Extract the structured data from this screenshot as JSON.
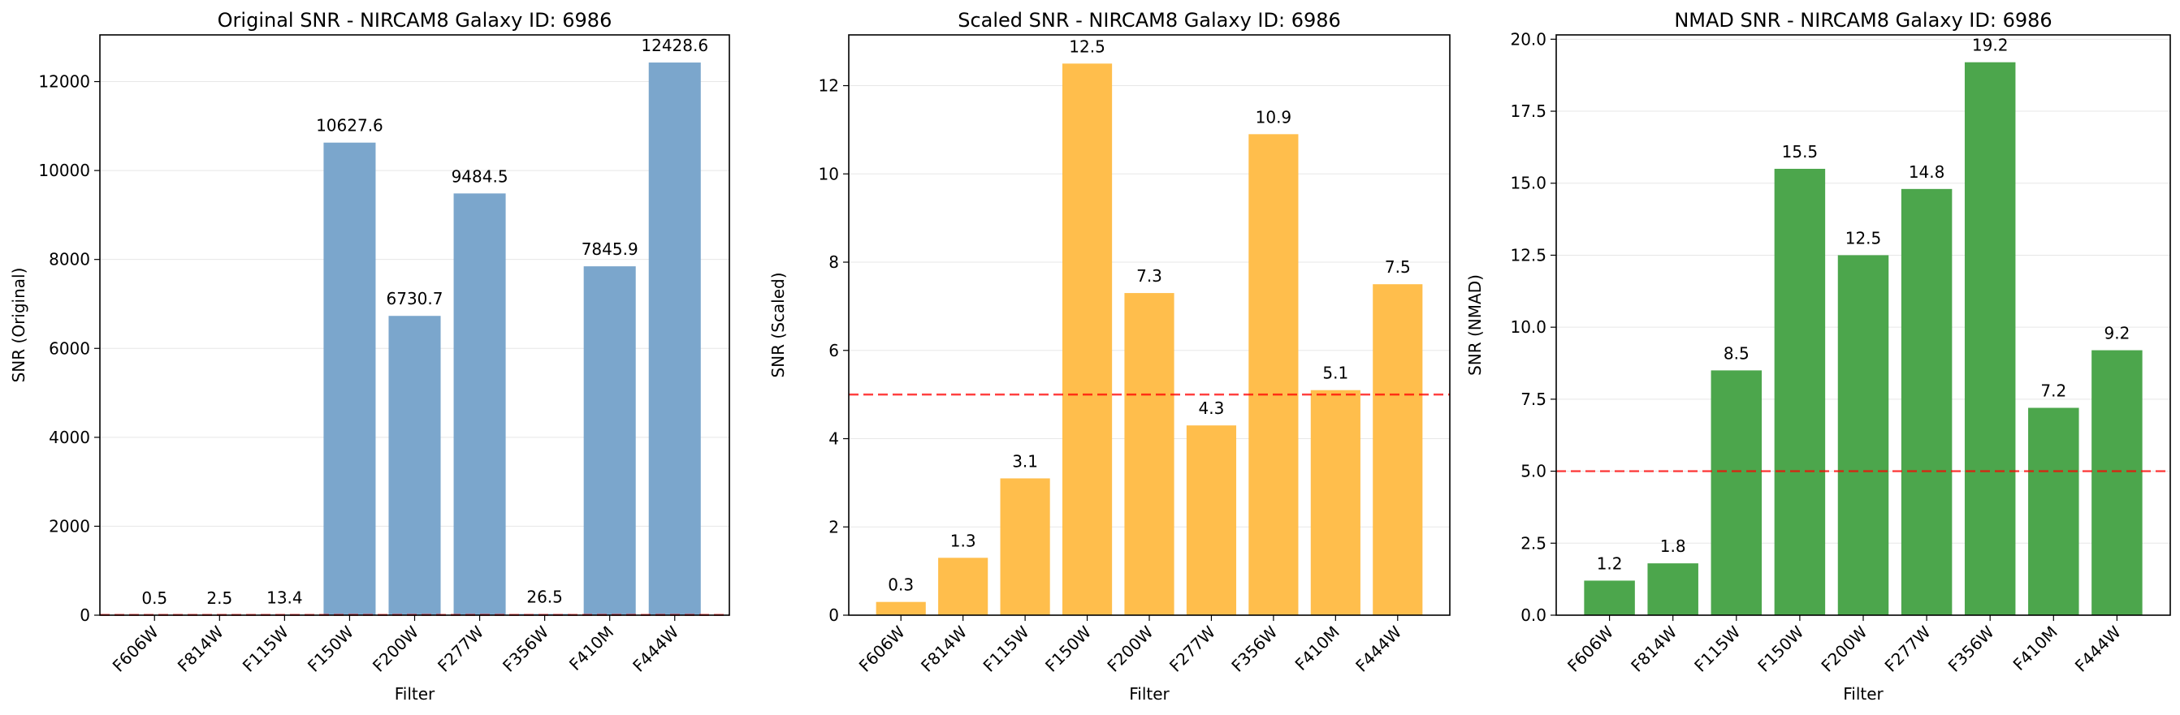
{
  "chart_data": [
    {
      "type": "bar",
      "title": "Original SNR - NIRCAM8 Galaxy ID: 6986",
      "xlabel": "Filter",
      "ylabel": "SNR (Original)",
      "categories": [
        "F606W",
        "F814W",
        "F115W",
        "F150W",
        "F200W",
        "F277W",
        "F356W",
        "F410M",
        "F444W"
      ],
      "values": [
        0.5,
        2.5,
        13.4,
        10627.6,
        6730.7,
        9484.5,
        26.5,
        7845.9,
        12428.6
      ],
      "value_labels": [
        "0.5",
        "2.5",
        "13.4",
        "10627.6",
        "6730.7",
        "9484.5",
        "26.5",
        "7845.9",
        "12428.6"
      ],
      "ylim": [
        0,
        13050
      ],
      "yticks": [
        0,
        2000,
        4000,
        6000,
        8000,
        10000,
        12000
      ],
      "ytick_labels": [
        "0",
        "2000",
        "4000",
        "6000",
        "8000",
        "10000",
        "12000"
      ],
      "threshold": 5,
      "grid": "y",
      "color": "#7ba6cc"
    },
    {
      "type": "bar",
      "title": "Scaled SNR - NIRCAM8 Galaxy ID: 6986",
      "xlabel": "Filter",
      "ylabel": "SNR (Scaled)",
      "categories": [
        "F606W",
        "F814W",
        "F115W",
        "F150W",
        "F200W",
        "F277W",
        "F356W",
        "F410M",
        "F444W"
      ],
      "values": [
        0.3,
        1.3,
        3.1,
        12.5,
        7.3,
        4.3,
        10.9,
        5.1,
        7.5
      ],
      "value_labels": [
        "0.3",
        "1.3",
        "3.1",
        "12.5",
        "7.3",
        "4.3",
        "10.9",
        "5.1",
        "7.5"
      ],
      "ylim": [
        0,
        13.15
      ],
      "yticks": [
        0,
        2,
        4,
        6,
        8,
        10,
        12
      ],
      "ytick_labels": [
        "0",
        "2",
        "4",
        "6",
        "8",
        "10",
        "12"
      ],
      "threshold": 5,
      "grid": "y",
      "color": "#ffbe4c"
    },
    {
      "type": "bar",
      "title": "NMAD SNR - NIRCAM8 Galaxy ID: 6986",
      "xlabel": "Filter",
      "ylabel": "SNR (NMAD)",
      "categories": [
        "F606W",
        "F814W",
        "F115W",
        "F150W",
        "F200W",
        "F277W",
        "F356W",
        "F410M",
        "F444W"
      ],
      "values": [
        1.2,
        1.8,
        8.5,
        15.5,
        12.5,
        14.8,
        19.2,
        7.2,
        9.2
      ],
      "value_labels": [
        "1.2",
        "1.8",
        "8.5",
        "15.5",
        "12.5",
        "14.8",
        "19.2",
        "7.2",
        "9.2"
      ],
      "ylim": [
        0,
        20.15
      ],
      "yticks": [
        0,
        2.5,
        5,
        7.5,
        10,
        12.5,
        15,
        17.5,
        20
      ],
      "ytick_labels": [
        "0.0",
        "2.5",
        "5.0",
        "7.5",
        "10.0",
        "12.5",
        "15.0",
        "17.5",
        "20.0"
      ],
      "threshold": 5,
      "grid": "y",
      "color": "#4ca64c"
    }
  ]
}
